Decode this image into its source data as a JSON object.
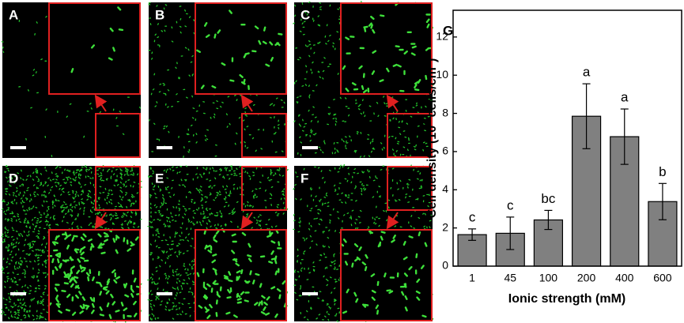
{
  "panels": [
    {
      "label": "A"
    },
    {
      "label": "B"
    },
    {
      "label": "C"
    },
    {
      "label": "D"
    },
    {
      "label": "E"
    },
    {
      "label": "F"
    }
  ],
  "chart_data": {
    "type": "bar",
    "label": "G",
    "categories": [
      "1",
      "45",
      "100",
      "200",
      "400",
      "600"
    ],
    "values": [
      1.65,
      1.72,
      2.42,
      7.85,
      6.78,
      3.38
    ],
    "errors": [
      0.3,
      0.85,
      0.5,
      1.7,
      1.45,
      0.95
    ],
    "annotations": [
      "c",
      "c",
      "bc",
      "a",
      "a",
      "b"
    ],
    "color": "#808080",
    "ylim": [
      0,
      13.4
    ],
    "yticks": [
      0,
      2,
      4,
      6,
      8,
      10,
      12
    ],
    "xlabel": "Ionic strength (mM)",
    "ylabel": {
      "text": "Cell density (10",
      "sup1": "6",
      "mid": " cells/cm",
      "sup2": "2",
      "end": ")"
    }
  }
}
